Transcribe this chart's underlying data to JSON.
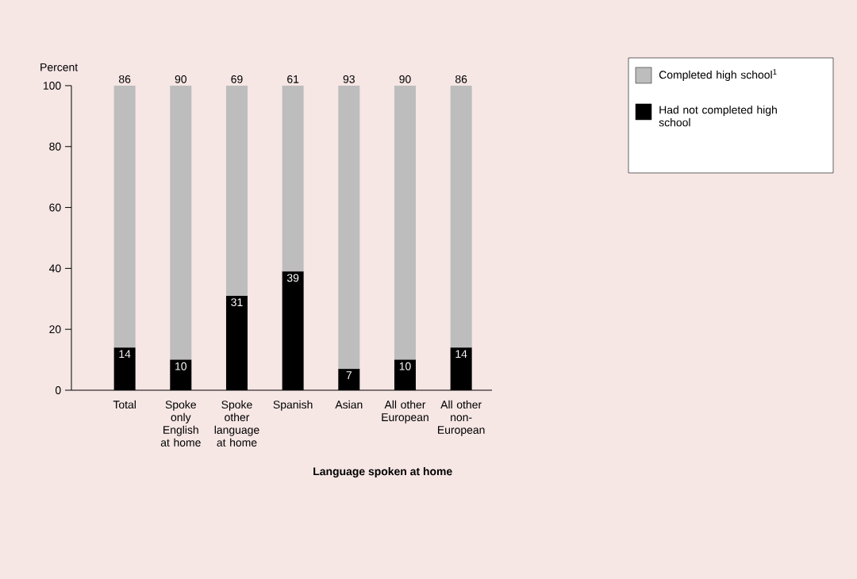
{
  "chart_data": {
    "type": "bar",
    "stacked": true,
    "categories": [
      "Total",
      "Spoke only English at home",
      "Spoke other language at home",
      "Spanish",
      "Asian",
      "All other European",
      "All other non-European"
    ],
    "series": [
      {
        "name": "Had not completed high school",
        "color": "#000000",
        "values": [
          14,
          10,
          31,
          39,
          7,
          10,
          14
        ]
      },
      {
        "name": "Completed high school$^{1}$",
        "color": "#bdbdbd",
        "values": [
          86,
          90,
          69,
          61,
          93,
          90,
          86
        ]
      }
    ],
    "xlabel": "Language spoken at home",
    "ylabel": "Percent",
    "ylim": [
      0,
      100
    ],
    "yticks": [
      0,
      20,
      40,
      60,
      80,
      100
    ],
    "data_labels": true,
    "legend": "top right"
  }
}
